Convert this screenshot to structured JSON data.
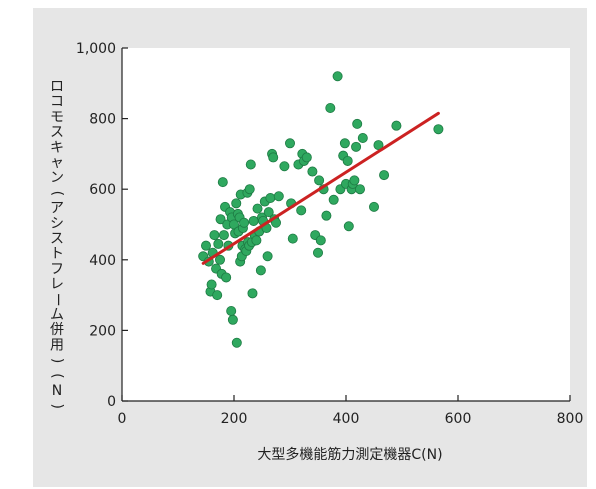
{
  "chart_data": {
    "type": "scatter",
    "xlabel": "大型多機能筋力測定機器C(N)",
    "ylabel": "ロコモスキャン(アシストフレーム併用)(N)",
    "xlim": [
      0,
      800
    ],
    "ylim": [
      0,
      1000
    ],
    "x_ticks": [
      "0",
      "200",
      "400",
      "600",
      "800"
    ],
    "y_ticks": [
      "0",
      "200",
      "400",
      "600",
      "800",
      "1,000"
    ],
    "grid": false,
    "colors": {
      "point": "#2fa85f",
      "point_edge": "#1d7a43",
      "regression": "#cc2222",
      "panel": "#e6e6e6",
      "plot_bg": "#ffffff"
    },
    "regression_line": {
      "x": [
        145,
        565
      ],
      "y": [
        390,
        815
      ]
    },
    "points": [
      [
        145,
        410
      ],
      [
        150,
        440
      ],
      [
        155,
        395
      ],
      [
        158,
        310
      ],
      [
        160,
        330
      ],
      [
        162,
        420
      ],
      [
        165,
        470
      ],
      [
        168,
        375
      ],
      [
        170,
        300
      ],
      [
        172,
        445
      ],
      [
        175,
        400
      ],
      [
        176,
        515
      ],
      [
        178,
        360
      ],
      [
        180,
        620
      ],
      [
        182,
        470
      ],
      [
        184,
        550
      ],
      [
        186,
        350
      ],
      [
        188,
        500
      ],
      [
        190,
        440
      ],
      [
        193,
        535
      ],
      [
        195,
        255
      ],
      [
        196,
        520
      ],
      [
        198,
        230
      ],
      [
        200,
        500
      ],
      [
        202,
        475
      ],
      [
        204,
        560
      ],
      [
        205,
        165
      ],
      [
        207,
        530
      ],
      [
        208,
        480
      ],
      [
        210,
        520
      ],
      [
        211,
        395
      ],
      [
        212,
        585
      ],
      [
        214,
        410
      ],
      [
        215,
        440
      ],
      [
        216,
        490
      ],
      [
        218,
        505
      ],
      [
        220,
        430
      ],
      [
        222,
        425
      ],
      [
        224,
        590
      ],
      [
        225,
        450
      ],
      [
        227,
        440
      ],
      [
        228,
        600
      ],
      [
        230,
        670
      ],
      [
        232,
        450
      ],
      [
        233,
        305
      ],
      [
        235,
        510
      ],
      [
        237,
        470
      ],
      [
        240,
        455
      ],
      [
        242,
        545
      ],
      [
        245,
        480
      ],
      [
        248,
        370
      ],
      [
        250,
        520
      ],
      [
        252,
        510
      ],
      [
        255,
        565
      ],
      [
        258,
        490
      ],
      [
        260,
        410
      ],
      [
        262,
        535
      ],
      [
        265,
        575
      ],
      [
        268,
        700
      ],
      [
        270,
        690
      ],
      [
        272,
        515
      ],
      [
        275,
        505
      ],
      [
        280,
        580
      ],
      [
        290,
        665
      ],
      [
        300,
        730
      ],
      [
        302,
        560
      ],
      [
        305,
        460
      ],
      [
        315,
        670
      ],
      [
        320,
        540
      ],
      [
        322,
        700
      ],
      [
        325,
        680
      ],
      [
        330,
        690
      ],
      [
        340,
        650
      ],
      [
        345,
        470
      ],
      [
        350,
        420
      ],
      [
        352,
        625
      ],
      [
        355,
        455
      ],
      [
        360,
        600
      ],
      [
        365,
        525
      ],
      [
        372,
        830
      ],
      [
        378,
        570
      ],
      [
        385,
        920
      ],
      [
        390,
        600
      ],
      [
        395,
        695
      ],
      [
        398,
        730
      ],
      [
        400,
        615
      ],
      [
        403,
        680
      ],
      [
        405,
        495
      ],
      [
        410,
        600
      ],
      [
        412,
        615
      ],
      [
        415,
        625
      ],
      [
        418,
        720
      ],
      [
        420,
        785
      ],
      [
        425,
        600
      ],
      [
        430,
        745
      ],
      [
        450,
        550
      ],
      [
        458,
        725
      ],
      [
        468,
        640
      ],
      [
        490,
        780
      ],
      [
        565,
        770
      ]
    ]
  }
}
